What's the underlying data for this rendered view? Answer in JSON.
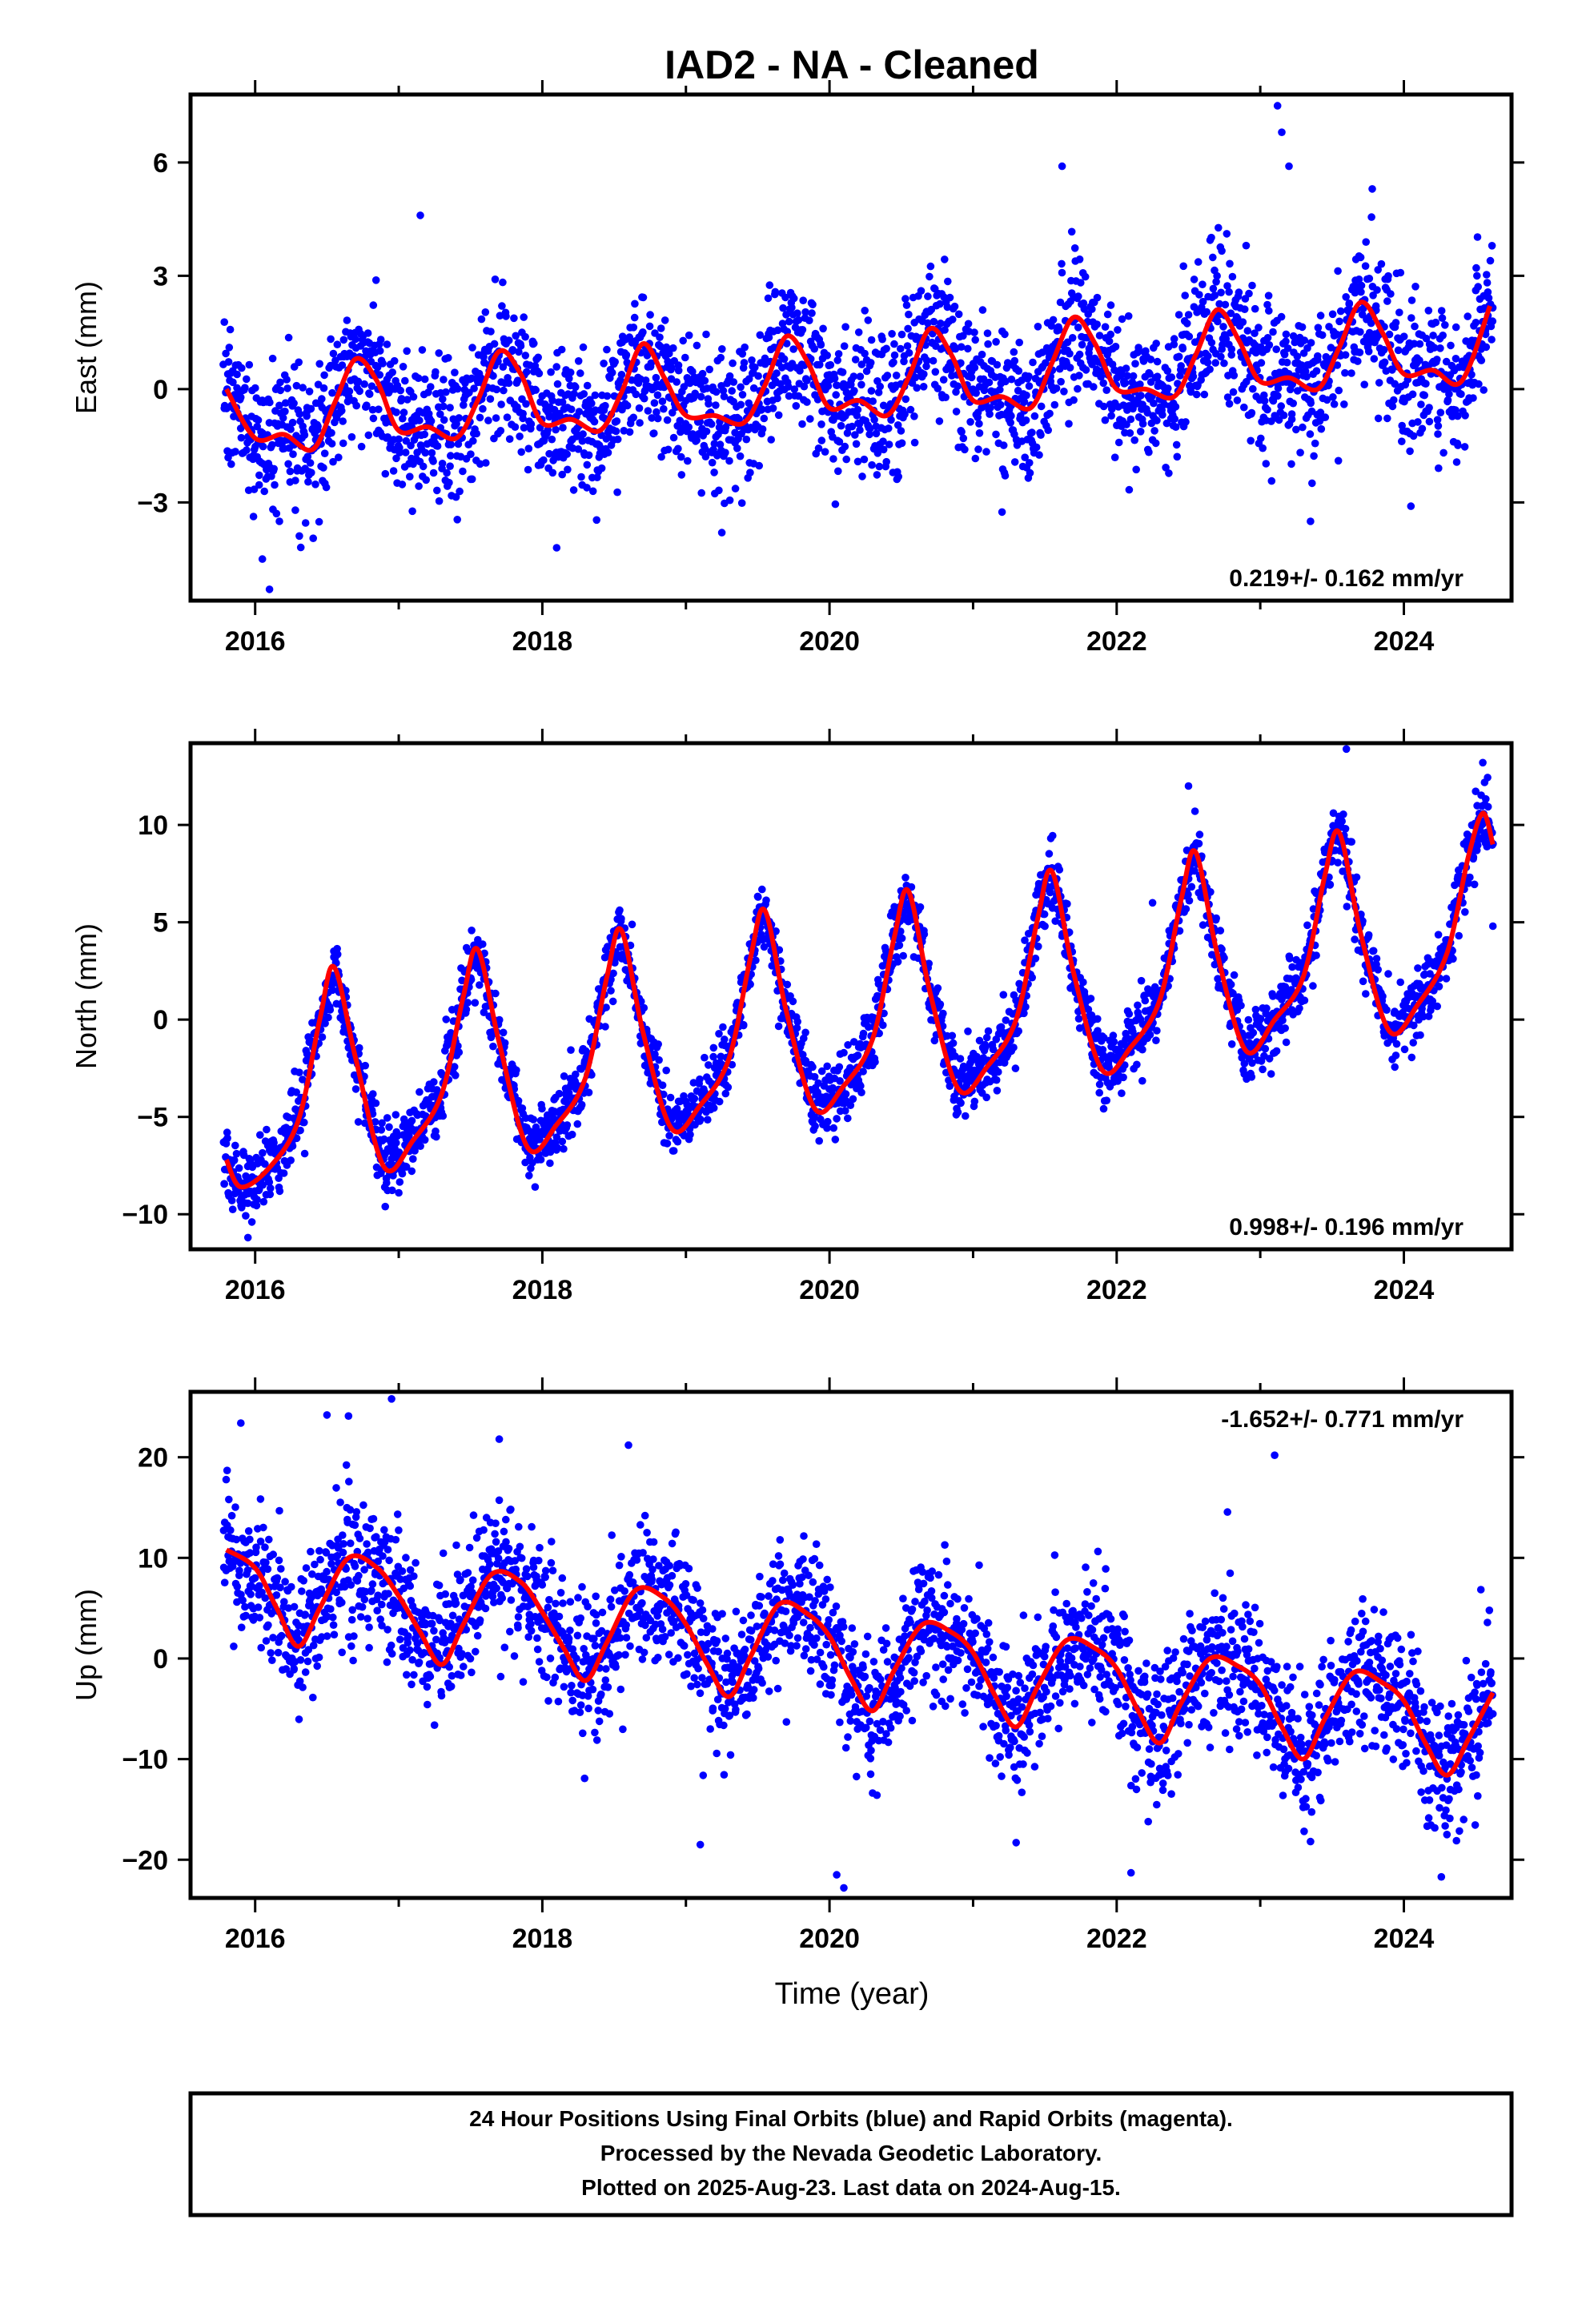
{
  "title": "IAD2  - NA - Cleaned",
  "xlabel": "Time (year)",
  "footer": {
    "lines": [
      "24 Hour Positions Using Final Orbits (blue) and Rapid Orbits (magenta).",
      "Processed by the Nevada Geodetic Laboratory.",
      "Plotted on 2025-Aug-23. Last data on 2024-Aug-15."
    ]
  },
  "colors": {
    "points": "#0000ff",
    "model": "#ff0000",
    "frame": "#000000"
  },
  "chart_data": [
    {
      "type": "scatter",
      "ylabel": "East (mm)",
      "rate": "0.219+/- 0.162 mm/yr",
      "rate_position": "bottom-right",
      "xlim": [
        2015.55,
        2024.75
      ],
      "ylim": [
        -5.6,
        7.8
      ],
      "xticks": [
        2016,
        2018,
        2020,
        2022,
        2024
      ],
      "yticks": [
        -3,
        0,
        3,
        6
      ],
      "ytick_labels": [
        "−3",
        "0",
        "3",
        "6"
      ],
      "grid": false,
      "model": {
        "name": "seasonal fit",
        "x": [
          2015.8,
          2016.0,
          2016.2,
          2016.4,
          2016.55,
          2016.7,
          2016.85,
          2017.0,
          2017.2,
          2017.4,
          2017.55,
          2017.7,
          2017.85,
          2018.0,
          2018.2,
          2018.4,
          2018.55,
          2018.7,
          2018.85,
          2019.0,
          2019.2,
          2019.4,
          2019.55,
          2019.7,
          2019.85,
          2020.0,
          2020.2,
          2020.4,
          2020.55,
          2020.7,
          2020.85,
          2021.0,
          2021.2,
          2021.4,
          2021.55,
          2021.7,
          2021.85,
          2022.0,
          2022.2,
          2022.4,
          2022.55,
          2022.7,
          2022.85,
          2023.0,
          2023.2,
          2023.4,
          2023.55,
          2023.7,
          2023.85,
          2024.0,
          2024.2,
          2024.4,
          2024.6
        ],
        "y": [
          0.0,
          -1.3,
          -1.2,
          -1.6,
          -0.4,
          0.8,
          0.2,
          -1.1,
          -1.0,
          -1.3,
          -0.3,
          1.0,
          0.4,
          -0.9,
          -0.8,
          -1.1,
          -0.1,
          1.2,
          0.3,
          -0.7,
          -0.7,
          -0.9,
          0.1,
          1.4,
          0.7,
          -0.5,
          -0.3,
          -0.7,
          0.3,
          1.6,
          0.9,
          -0.3,
          -0.2,
          -0.5,
          0.7,
          1.9,
          1.2,
          0.0,
          0.0,
          -0.2,
          0.9,
          2.1,
          1.3,
          0.2,
          0.3,
          0.0,
          1.1,
          2.3,
          1.5,
          0.4,
          0.5,
          0.2,
          2.2
        ]
      },
      "points": {
        "x_start": 2015.78,
        "x_end": 2024.62,
        "count": 2700,
        "scatter_sd": 0.95,
        "min": -5.3,
        "max": 7.6,
        "outliers": [
          [
            2023.12,
            7.5
          ],
          [
            2023.15,
            6.8
          ],
          [
            2023.2,
            5.9
          ],
          [
            2021.62,
            5.9
          ],
          [
            2023.78,
            5.3
          ],
          [
            2017.15,
            4.6
          ],
          [
            2016.1,
            -5.3
          ],
          [
            2016.05,
            -4.5
          ],
          [
            2018.1,
            -4.2
          ],
          [
            2019.25,
            -3.8
          ],
          [
            2023.35,
            -3.5
          ]
        ]
      }
    },
    {
      "type": "scatter",
      "ylabel": "North (mm)",
      "rate": "0.998+/- 0.196 mm/yr",
      "rate_position": "bottom-right",
      "xlim": [
        2015.55,
        2024.75
      ],
      "ylim": [
        -11.8,
        14.2
      ],
      "xticks": [
        2016,
        2018,
        2020,
        2022,
        2024
      ],
      "yticks": [
        -10,
        -5,
        0,
        5,
        10
      ],
      "ytick_labels": [
        "−10",
        "−5",
        "0",
        "5",
        "10"
      ],
      "grid": false,
      "model": {
        "name": "seasonal fit",
        "x": [
          2015.8,
          2015.9,
          2016.1,
          2016.3,
          2016.45,
          2016.55,
          2016.7,
          2016.9,
          2017.1,
          2017.3,
          2017.45,
          2017.55,
          2017.7,
          2017.9,
          2018.1,
          2018.3,
          2018.45,
          2018.55,
          2018.7,
          2018.9,
          2019.1,
          2019.3,
          2019.45,
          2019.55,
          2019.7,
          2019.9,
          2020.1,
          2020.3,
          2020.45,
          2020.55,
          2020.7,
          2020.9,
          2021.1,
          2021.3,
          2021.45,
          2021.55,
          2021.7,
          2021.9,
          2022.1,
          2022.3,
          2022.45,
          2022.55,
          2022.7,
          2022.9,
          2023.1,
          2023.3,
          2023.45,
          2023.55,
          2023.7,
          2023.9,
          2024.1,
          2024.3,
          2024.45,
          2024.55,
          2024.62
        ],
        "y": [
          -7.2,
          -8.6,
          -7.6,
          -5.2,
          0.0,
          2.7,
          -2.0,
          -7.6,
          -6.2,
          -3.8,
          1.2,
          3.6,
          -1.2,
          -6.6,
          -5.4,
          -3.0,
          2.2,
          4.6,
          -0.6,
          -5.6,
          -4.4,
          -2.0,
          3.2,
          5.6,
          0.4,
          -4.6,
          -3.4,
          -1.0,
          4.2,
          6.6,
          1.4,
          -3.6,
          -2.4,
          0.0,
          5.2,
          7.6,
          2.4,
          -2.6,
          -1.4,
          1.0,
          6.2,
          8.6,
          3.4,
          -1.6,
          0.0,
          2.2,
          7.4,
          9.6,
          4.4,
          -0.6,
          0.8,
          3.4,
          8.4,
          10.6,
          9.0
        ]
      },
      "points": {
        "x_start": 2015.78,
        "x_end": 2024.62,
        "count": 2700,
        "scatter_sd": 0.9,
        "min": -11.2,
        "max": 13.9,
        "outliers": [
          [
            2023.6,
            13.9
          ],
          [
            2024.55,
            13.2
          ],
          [
            2022.5,
            12.0
          ],
          [
            2015.95,
            -11.2
          ],
          [
            2017.0,
            -8.9
          ],
          [
            2017.95,
            -8.6
          ],
          [
            2024.62,
            4.8
          ],
          [
            2022.25,
            6.0
          ]
        ]
      }
    },
    {
      "type": "scatter",
      "ylabel": "Up (mm)",
      "rate": "-1.652+/- 0.771 mm/yr",
      "rate_position": "top-right",
      "xlim": [
        2015.55,
        2024.75
      ],
      "ylim": [
        -23.8,
        26.5
      ],
      "xticks": [
        2016,
        2018,
        2020,
        2022,
        2024
      ],
      "yticks": [
        -20,
        -10,
        0,
        10,
        20
      ],
      "ytick_labels": [
        "−20",
        "−10",
        "0",
        "10",
        "20"
      ],
      "grid": false,
      "model": {
        "name": "seasonal fit",
        "x": [
          2015.8,
          2016.0,
          2016.15,
          2016.3,
          2016.45,
          2016.65,
          2016.85,
          2017.0,
          2017.15,
          2017.3,
          2017.45,
          2017.65,
          2017.85,
          2018.0,
          2018.15,
          2018.3,
          2018.45,
          2018.65,
          2018.85,
          2019.0,
          2019.15,
          2019.3,
          2019.45,
          2019.65,
          2019.85,
          2020.0,
          2020.15,
          2020.3,
          2020.45,
          2020.65,
          2020.85,
          2021.0,
          2021.15,
          2021.3,
          2021.45,
          2021.65,
          2021.85,
          2022.0,
          2022.15,
          2022.3,
          2022.45,
          2022.65,
          2022.85,
          2023.0,
          2023.15,
          2023.3,
          2023.45,
          2023.65,
          2023.85,
          2024.0,
          2024.15,
          2024.3,
          2024.45,
          2024.62
        ],
        "y": [
          10.8,
          9.0,
          5.0,
          1.2,
          5.0,
          10.0,
          9.0,
          6.2,
          2.6,
          -0.6,
          3.4,
          8.4,
          7.6,
          4.6,
          1.0,
          -2.2,
          1.6,
          6.8,
          6.0,
          3.4,
          -0.6,
          -3.8,
          0.2,
          5.4,
          4.4,
          2.2,
          -2.0,
          -5.2,
          -1.2,
          3.4,
          2.6,
          0.6,
          -3.6,
          -6.8,
          -2.8,
          1.8,
          1.0,
          -1.0,
          -5.2,
          -8.4,
          -4.4,
          0.0,
          -0.8,
          -2.6,
          -6.8,
          -10.0,
          -6.0,
          -1.4,
          -2.4,
          -4.2,
          -8.4,
          -11.6,
          -8.0,
          -3.4
        ]
      },
      "points": {
        "x_start": 2015.78,
        "x_end": 2024.62,
        "count": 2700,
        "scatter_sd": 3.4,
        "min": -22.8,
        "max": 25.8,
        "outliers": [
          [
            2016.95,
            25.8
          ],
          [
            2016.5,
            24.2
          ],
          [
            2016.65,
            24.1
          ],
          [
            2015.9,
            23.4
          ],
          [
            2017.7,
            21.8
          ],
          [
            2018.6,
            21.2
          ],
          [
            2023.1,
            20.2
          ],
          [
            2020.1,
            -22.8
          ],
          [
            2020.05,
            -21.5
          ],
          [
            2022.1,
            -21.3
          ],
          [
            2019.1,
            -18.5
          ],
          [
            2023.35,
            -18.2
          ],
          [
            2021.3,
            -18.3
          ],
          [
            2024.3,
            -17.5
          ]
        ]
      }
    }
  ]
}
